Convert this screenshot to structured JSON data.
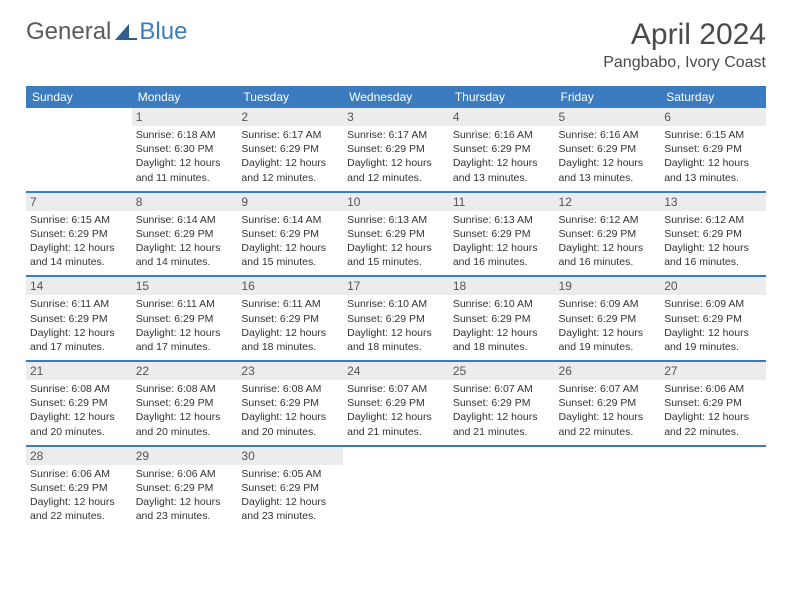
{
  "brand": {
    "part1": "General",
    "part2": "Blue",
    "icon_color": "#2c5f8d"
  },
  "title": "April 2024",
  "location": "Pangbabo, Ivory Coast",
  "colors": {
    "header_bg": "#3b7bbf",
    "header_fg": "#ffffff",
    "daynum_bg": "#ececec",
    "daynum_fg": "#555555",
    "text": "#333333",
    "rule": "#3b7bbf"
  },
  "typography": {
    "title_fontsize": 30,
    "location_fontsize": 16,
    "dow_fontsize": 12,
    "daynum_fontsize": 12,
    "cell_fontsize": 10.5
  },
  "day_headers": [
    "Sunday",
    "Monday",
    "Tuesday",
    "Wednesday",
    "Thursday",
    "Friday",
    "Saturday"
  ],
  "weeks": [
    [
      {
        "n": "",
        "sunrise": "",
        "sunset": "",
        "daylight": ""
      },
      {
        "n": "1",
        "sunrise": "Sunrise: 6:18 AM",
        "sunset": "Sunset: 6:30 PM",
        "daylight": "Daylight: 12 hours and 11 minutes."
      },
      {
        "n": "2",
        "sunrise": "Sunrise: 6:17 AM",
        "sunset": "Sunset: 6:29 PM",
        "daylight": "Daylight: 12 hours and 12 minutes."
      },
      {
        "n": "3",
        "sunrise": "Sunrise: 6:17 AM",
        "sunset": "Sunset: 6:29 PM",
        "daylight": "Daylight: 12 hours and 12 minutes."
      },
      {
        "n": "4",
        "sunrise": "Sunrise: 6:16 AM",
        "sunset": "Sunset: 6:29 PM",
        "daylight": "Daylight: 12 hours and 13 minutes."
      },
      {
        "n": "5",
        "sunrise": "Sunrise: 6:16 AM",
        "sunset": "Sunset: 6:29 PM",
        "daylight": "Daylight: 12 hours and 13 minutes."
      },
      {
        "n": "6",
        "sunrise": "Sunrise: 6:15 AM",
        "sunset": "Sunset: 6:29 PM",
        "daylight": "Daylight: 12 hours and 13 minutes."
      }
    ],
    [
      {
        "n": "7",
        "sunrise": "Sunrise: 6:15 AM",
        "sunset": "Sunset: 6:29 PM",
        "daylight": "Daylight: 12 hours and 14 minutes."
      },
      {
        "n": "8",
        "sunrise": "Sunrise: 6:14 AM",
        "sunset": "Sunset: 6:29 PM",
        "daylight": "Daylight: 12 hours and 14 minutes."
      },
      {
        "n": "9",
        "sunrise": "Sunrise: 6:14 AM",
        "sunset": "Sunset: 6:29 PM",
        "daylight": "Daylight: 12 hours and 15 minutes."
      },
      {
        "n": "10",
        "sunrise": "Sunrise: 6:13 AM",
        "sunset": "Sunset: 6:29 PM",
        "daylight": "Daylight: 12 hours and 15 minutes."
      },
      {
        "n": "11",
        "sunrise": "Sunrise: 6:13 AM",
        "sunset": "Sunset: 6:29 PM",
        "daylight": "Daylight: 12 hours and 16 minutes."
      },
      {
        "n": "12",
        "sunrise": "Sunrise: 6:12 AM",
        "sunset": "Sunset: 6:29 PM",
        "daylight": "Daylight: 12 hours and 16 minutes."
      },
      {
        "n": "13",
        "sunrise": "Sunrise: 6:12 AM",
        "sunset": "Sunset: 6:29 PM",
        "daylight": "Daylight: 12 hours and 16 minutes."
      }
    ],
    [
      {
        "n": "14",
        "sunrise": "Sunrise: 6:11 AM",
        "sunset": "Sunset: 6:29 PM",
        "daylight": "Daylight: 12 hours and 17 minutes."
      },
      {
        "n": "15",
        "sunrise": "Sunrise: 6:11 AM",
        "sunset": "Sunset: 6:29 PM",
        "daylight": "Daylight: 12 hours and 17 minutes."
      },
      {
        "n": "16",
        "sunrise": "Sunrise: 6:11 AM",
        "sunset": "Sunset: 6:29 PM",
        "daylight": "Daylight: 12 hours and 18 minutes."
      },
      {
        "n": "17",
        "sunrise": "Sunrise: 6:10 AM",
        "sunset": "Sunset: 6:29 PM",
        "daylight": "Daylight: 12 hours and 18 minutes."
      },
      {
        "n": "18",
        "sunrise": "Sunrise: 6:10 AM",
        "sunset": "Sunset: 6:29 PM",
        "daylight": "Daylight: 12 hours and 18 minutes."
      },
      {
        "n": "19",
        "sunrise": "Sunrise: 6:09 AM",
        "sunset": "Sunset: 6:29 PM",
        "daylight": "Daylight: 12 hours and 19 minutes."
      },
      {
        "n": "20",
        "sunrise": "Sunrise: 6:09 AM",
        "sunset": "Sunset: 6:29 PM",
        "daylight": "Daylight: 12 hours and 19 minutes."
      }
    ],
    [
      {
        "n": "21",
        "sunrise": "Sunrise: 6:08 AM",
        "sunset": "Sunset: 6:29 PM",
        "daylight": "Daylight: 12 hours and 20 minutes."
      },
      {
        "n": "22",
        "sunrise": "Sunrise: 6:08 AM",
        "sunset": "Sunset: 6:29 PM",
        "daylight": "Daylight: 12 hours and 20 minutes."
      },
      {
        "n": "23",
        "sunrise": "Sunrise: 6:08 AM",
        "sunset": "Sunset: 6:29 PM",
        "daylight": "Daylight: 12 hours and 20 minutes."
      },
      {
        "n": "24",
        "sunrise": "Sunrise: 6:07 AM",
        "sunset": "Sunset: 6:29 PM",
        "daylight": "Daylight: 12 hours and 21 minutes."
      },
      {
        "n": "25",
        "sunrise": "Sunrise: 6:07 AM",
        "sunset": "Sunset: 6:29 PM",
        "daylight": "Daylight: 12 hours and 21 minutes."
      },
      {
        "n": "26",
        "sunrise": "Sunrise: 6:07 AM",
        "sunset": "Sunset: 6:29 PM",
        "daylight": "Daylight: 12 hours and 22 minutes."
      },
      {
        "n": "27",
        "sunrise": "Sunrise: 6:06 AM",
        "sunset": "Sunset: 6:29 PM",
        "daylight": "Daylight: 12 hours and 22 minutes."
      }
    ],
    [
      {
        "n": "28",
        "sunrise": "Sunrise: 6:06 AM",
        "sunset": "Sunset: 6:29 PM",
        "daylight": "Daylight: 12 hours and 22 minutes."
      },
      {
        "n": "29",
        "sunrise": "Sunrise: 6:06 AM",
        "sunset": "Sunset: 6:29 PM",
        "daylight": "Daylight: 12 hours and 23 minutes."
      },
      {
        "n": "30",
        "sunrise": "Sunrise: 6:05 AM",
        "sunset": "Sunset: 6:29 PM",
        "daylight": "Daylight: 12 hours and 23 minutes."
      },
      {
        "n": "",
        "sunrise": "",
        "sunset": "",
        "daylight": ""
      },
      {
        "n": "",
        "sunrise": "",
        "sunset": "",
        "daylight": ""
      },
      {
        "n": "",
        "sunrise": "",
        "sunset": "",
        "daylight": ""
      },
      {
        "n": "",
        "sunrise": "",
        "sunset": "",
        "daylight": ""
      }
    ]
  ]
}
